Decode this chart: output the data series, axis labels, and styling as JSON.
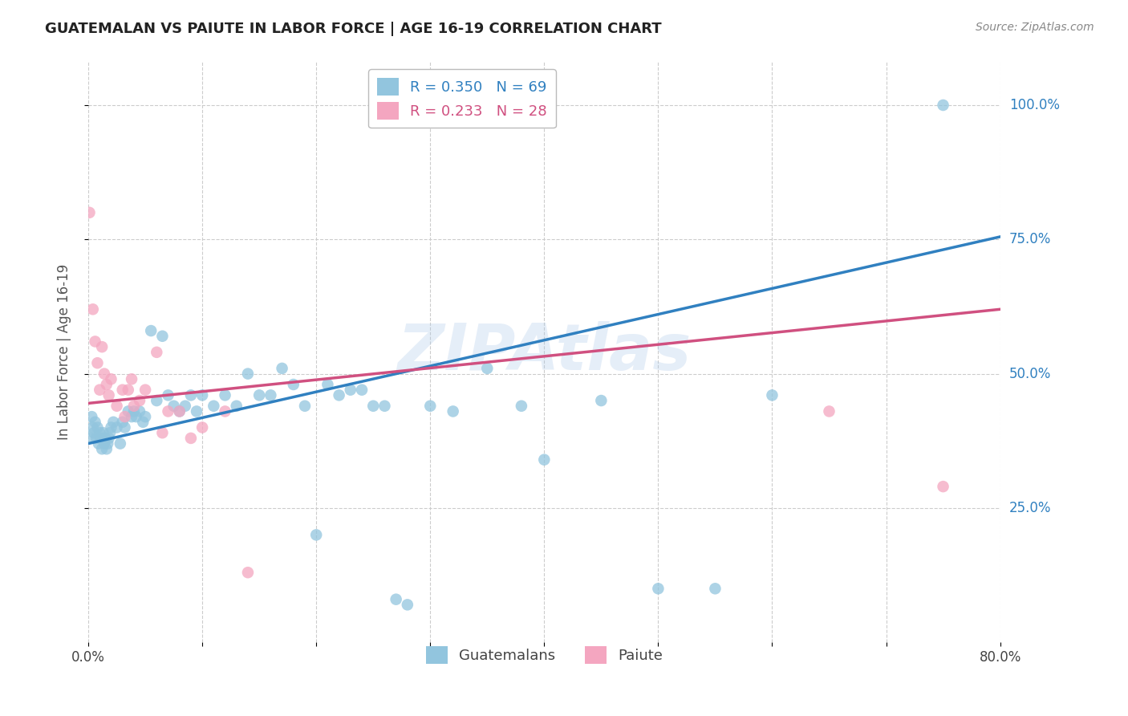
{
  "title": "GUATEMALAN VS PAIUTE IN LABOR FORCE | AGE 16-19 CORRELATION CHART",
  "source": "Source: ZipAtlas.com",
  "ylabel_label": "In Labor Force | Age 16-19",
  "x_min": 0.0,
  "x_max": 0.8,
  "y_min": 0.0,
  "y_max": 1.08,
  "y_ticks": [
    0.25,
    0.5,
    0.75,
    1.0
  ],
  "y_tick_labels": [
    "25.0%",
    "50.0%",
    "75.0%",
    "100.0%"
  ],
  "blue_color": "#92c5de",
  "pink_color": "#f4a6c0",
  "blue_line_color": "#3080c0",
  "pink_line_color": "#d05080",
  "R_blue": 0.35,
  "N_blue": 69,
  "R_pink": 0.233,
  "N_pink": 28,
  "legend_label_blue": "Guatemalans",
  "legend_label_pink": "Paiute",
  "watermark": "ZIPAtlas",
  "blue_scatter_x": [
    0.002,
    0.003,
    0.004,
    0.005,
    0.006,
    0.007,
    0.008,
    0.009,
    0.01,
    0.011,
    0.012,
    0.013,
    0.014,
    0.015,
    0.016,
    0.017,
    0.018,
    0.019,
    0.02,
    0.022,
    0.025,
    0.028,
    0.03,
    0.032,
    0.035,
    0.038,
    0.04,
    0.042,
    0.045,
    0.048,
    0.05,
    0.055,
    0.06,
    0.065,
    0.07,
    0.075,
    0.08,
    0.085,
    0.09,
    0.095,
    0.1,
    0.11,
    0.12,
    0.13,
    0.14,
    0.15,
    0.16,
    0.17,
    0.18,
    0.19,
    0.2,
    0.21,
    0.22,
    0.23,
    0.24,
    0.25,
    0.26,
    0.27,
    0.28,
    0.3,
    0.32,
    0.35,
    0.38,
    0.4,
    0.45,
    0.5,
    0.55,
    0.6,
    0.75
  ],
  "blue_scatter_y": [
    0.38,
    0.42,
    0.4,
    0.39,
    0.41,
    0.38,
    0.4,
    0.37,
    0.39,
    0.38,
    0.36,
    0.39,
    0.37,
    0.38,
    0.36,
    0.37,
    0.38,
    0.39,
    0.4,
    0.41,
    0.4,
    0.37,
    0.41,
    0.4,
    0.43,
    0.42,
    0.43,
    0.42,
    0.43,
    0.41,
    0.42,
    0.58,
    0.45,
    0.57,
    0.46,
    0.44,
    0.43,
    0.44,
    0.46,
    0.43,
    0.46,
    0.44,
    0.46,
    0.44,
    0.5,
    0.46,
    0.46,
    0.51,
    0.48,
    0.44,
    0.2,
    0.48,
    0.46,
    0.47,
    0.47,
    0.44,
    0.44,
    0.08,
    0.07,
    0.44,
    0.43,
    0.51,
    0.44,
    0.34,
    0.45,
    0.1,
    0.1,
    0.46,
    1.0
  ],
  "pink_scatter_x": [
    0.001,
    0.004,
    0.006,
    0.008,
    0.01,
    0.012,
    0.014,
    0.016,
    0.018,
    0.02,
    0.025,
    0.03,
    0.032,
    0.035,
    0.038,
    0.04,
    0.045,
    0.05,
    0.06,
    0.065,
    0.07,
    0.08,
    0.09,
    0.1,
    0.12,
    0.14,
    0.65,
    0.75
  ],
  "pink_scatter_y": [
    0.8,
    0.62,
    0.56,
    0.52,
    0.47,
    0.55,
    0.5,
    0.48,
    0.46,
    0.49,
    0.44,
    0.47,
    0.42,
    0.47,
    0.49,
    0.44,
    0.45,
    0.47,
    0.54,
    0.39,
    0.43,
    0.43,
    0.38,
    0.4,
    0.43,
    0.13,
    0.43,
    0.29
  ],
  "blue_line_x0": 0.0,
  "blue_line_y0": 0.37,
  "blue_line_x1": 0.8,
  "blue_line_y1": 0.755,
  "pink_line_x0": 0.0,
  "pink_line_y0": 0.445,
  "pink_line_x1": 0.8,
  "pink_line_y1": 0.62
}
